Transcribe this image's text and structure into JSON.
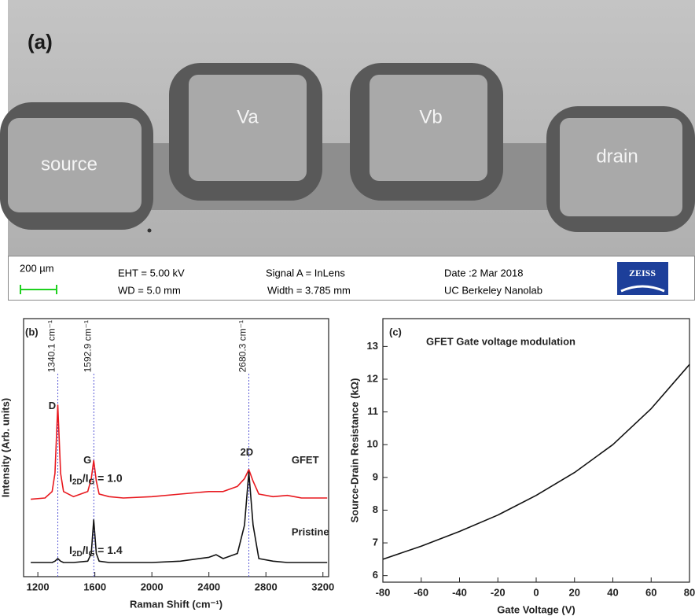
{
  "sem_panel": {
    "label": "(a)",
    "pads": [
      "source",
      "Va",
      "Vb",
      "drain"
    ],
    "info_bar": {
      "scale": "200 µm",
      "lines": [
        "EHT = 5.00 kV",
        "WD = 5.0 mm",
        "Signal A = InLens",
        "Width = 3.785 mm",
        "Date :2 Mar 2018",
        "UC Berkeley Nanolab"
      ],
      "logo": "ZEISS"
    }
  },
  "chart_data": [
    {
      "type": "line",
      "panel_label": "(b)",
      "x_label": "Raman Shift (cm⁻¹)",
      "y_label": "Intensity (Arb. units)",
      "x": [
        1150,
        1250,
        1300,
        1320,
        1340,
        1360,
        1380,
        1450,
        1550,
        1575,
        1592,
        1610,
        1630,
        1700,
        1800,
        2000,
        2200,
        2400,
        2450,
        2500,
        2600,
        2650,
        2680,
        2710,
        2750,
        2850,
        2950,
        3050,
        3150,
        3230
      ],
      "series": [
        {
          "name": "GFET",
          "color": "#e8191f",
          "values": [
            30,
            30.5,
            33,
            40,
            66.5,
            40,
            33,
            31,
            33,
            38,
            45,
            37,
            32,
            31,
            30.5,
            31,
            32,
            33,
            33,
            33,
            35,
            38,
            41.5,
            37,
            32,
            31,
            31.5,
            30.5,
            30.5,
            30.5
          ]
        },
        {
          "name": "Pristine",
          "color": "#111111",
          "values": [
            5.5,
            5.5,
            5.5,
            6,
            7,
            6,
            5.5,
            5.5,
            6,
            9,
            22,
            9,
            6,
            5.5,
            5.5,
            5.5,
            6,
            7.5,
            8.5,
            7,
            9,
            20,
            40.5,
            20,
            7,
            6,
            5.5,
            5.5,
            5.5,
            5.5
          ]
        }
      ],
      "peaks": [
        {
          "value": 1340.1,
          "label": "1340.1 cm⁻¹"
        },
        {
          "value": 1592.9,
          "label": "1592.9 cm⁻¹"
        },
        {
          "value": 2680.3,
          "label": "2680.3 cm⁻¹"
        }
      ],
      "annotations": [
        "D",
        "G",
        "2D"
      ],
      "ratios": [
        [
          "I",
          "2D",
          "/I",
          "G",
          " = 1.0"
        ],
        [
          "I",
          "2D",
          "/I",
          "G",
          " = 1.4"
        ]
      ],
      "xlim": [
        1100,
        3240
      ],
      "ylim": [
        0,
        100
      ],
      "xticks": [
        1200,
        1600,
        2000,
        2400,
        2800,
        3200
      ]
    },
    {
      "type": "line",
      "panel_label": "(c)",
      "title": "GFET Gate voltage modulation",
      "x_label": "Gate Voltage (V)",
      "y_label": "Source-Drain Resistance (kΩ)",
      "x": [
        -80,
        -60,
        -40,
        -20,
        0,
        20,
        40,
        60,
        80
      ],
      "series": [
        {
          "color": "#111111",
          "values": [
            6.5,
            6.9,
            7.35,
            7.85,
            8.45,
            9.15,
            10.0,
            11.1,
            12.45
          ]
        }
      ],
      "xlim": [
        -80,
        80
      ],
      "ylim": [
        5.8,
        13.85
      ],
      "xticks": [
        -80,
        -60,
        -40,
        -20,
        0,
        20,
        40,
        60,
        80
      ],
      "yticks": [
        6,
        7,
        8,
        9,
        10,
        11,
        12,
        13
      ]
    }
  ]
}
